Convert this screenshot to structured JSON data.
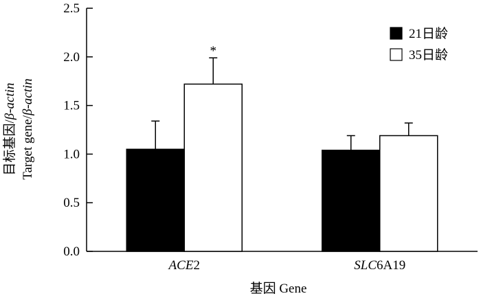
{
  "chart_data": {
    "type": "bar",
    "categories": [
      {
        "pre": "ACE",
        "post": "2"
      },
      {
        "pre": "SLC",
        "post": "6A19"
      }
    ],
    "series": [
      {
        "name": "21日龄",
        "values": [
          1.05,
          1.04
        ],
        "errors": [
          0.29,
          0.15
        ],
        "fill": "#000000"
      },
      {
        "name": "35日龄",
        "values": [
          1.72,
          1.19
        ],
        "errors": [
          0.27,
          0.13
        ],
        "fill": "#ffffff"
      }
    ],
    "annotations": [
      {
        "series": 1,
        "category": 0,
        "text": "*"
      }
    ],
    "ylim": [
      0,
      2.5
    ],
    "yticks": [
      "0.0",
      "0.5",
      "1.0",
      "1.5",
      "2.0",
      "2.5"
    ],
    "ylabel": {
      "line1_a": "目标基因/",
      "line1_b": "β-actin",
      "line2_a": "Target gene/",
      "line2_b": "β-actin"
    },
    "xlabel": "基因 Gene",
    "legend_position": "top-right",
    "grid": false
  }
}
